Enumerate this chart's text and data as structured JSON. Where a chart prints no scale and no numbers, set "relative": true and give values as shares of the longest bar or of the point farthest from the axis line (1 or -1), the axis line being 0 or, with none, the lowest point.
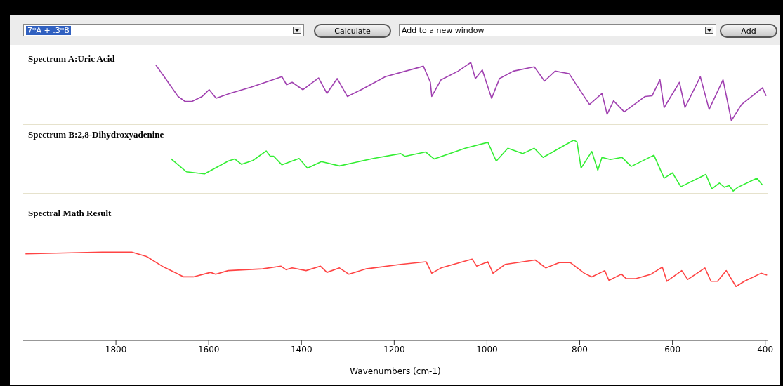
{
  "chart_data": [
    {
      "type": "line",
      "title": "Spectrum A:Uric Acid",
      "relative": true,
      "xlim": [
        2000,
        395
      ],
      "tick_labels": false,
      "grid": false,
      "annotations": [
        "7*A + .3*B",
        "Calculate",
        "Add to a new window",
        "Add"
      ],
      "series": [
        {
          "color": "#a040b0",
          "x": [
            1714,
            1696,
            1666,
            1651,
            1636,
            1614,
            1599,
            1584,
            1554,
            1509,
            1442,
            1432,
            1420,
            1397,
            1363,
            1345,
            1323,
            1301,
            1271,
            1219,
            1137,
            1122,
            1119,
            1099,
            1062,
            1035,
            1025,
            1010,
            990,
            973,
            943,
            898,
            876,
            853,
            823,
            779,
            752,
            741,
            727,
            704,
            659,
            644,
            627,
            618,
            585,
            573,
            540,
            521,
            491,
            473,
            451,
            406,
            398
          ],
          "values": [
            0.96,
            0.77,
            0.45,
            0.37,
            0.37,
            0.45,
            0.56,
            0.42,
            0.5,
            0.6,
            0.77,
            0.64,
            0.68,
            0.56,
            0.75,
            0.5,
            0.74,
            0.45,
            0.56,
            0.77,
            0.94,
            0.68,
            0.45,
            0.72,
            0.86,
            1,
            0.74,
            0.88,
            0.42,
            0.74,
            0.86,
            0.93,
            0.7,
            0.86,
            0.82,
            0.32,
            0.5,
            0.16,
            0.38,
            0.2,
            0.45,
            0.46,
            0.72,
            0.27,
            0.68,
            0.27,
            0.77,
            0.24,
            0.72,
            0.06,
            0.32,
            0.59,
            0.46
          ]
        }
      ]
    },
    {
      "type": "line",
      "title": "Spectrum B:2,8-Dihydroxyadenine",
      "relative": true,
      "xlim": [
        2000,
        395
      ],
      "tick_labels": false,
      "grid": false,
      "series": [
        {
          "color": "#33ee33",
          "x": [
            1681,
            1648,
            1609,
            1558,
            1544,
            1529,
            1505,
            1476,
            1467,
            1460,
            1442,
            1405,
            1387,
            1357,
            1318,
            1245,
            1186,
            1177,
            1132,
            1114,
            1047,
            998,
            980,
            955,
            923,
            898,
            879,
            813,
            806,
            797,
            774,
            761,
            752,
            734,
            709,
            689,
            640,
            618,
            600,
            582,
            528,
            515,
            499,
            488,
            478,
            469,
            459,
            418,
            406
          ],
          "values": [
            0.65,
            0.41,
            0.37,
            0.61,
            0.65,
            0.55,
            0.62,
            0.8,
            0.7,
            0.7,
            0.54,
            0.66,
            0.48,
            0.6,
            0.52,
            0.66,
            0.75,
            0.7,
            0.78,
            0.65,
            0.85,
            0.96,
            0.61,
            0.85,
            0.75,
            0.85,
            0.68,
            1,
            0.97,
            0.48,
            0.79,
            0.44,
            0.68,
            0.64,
            0.68,
            0.51,
            0.72,
            0.29,
            0.39,
            0.13,
            0.36,
            0.09,
            0.2,
            0.12,
            0.15,
            0.05,
            0.12,
            0.29,
            0.16
          ]
        }
      ]
    },
    {
      "type": "line",
      "title": "Spectral Math Result",
      "relative": true,
      "xlim": [
        2000,
        395
      ],
      "xticks": [
        1800,
        1600,
        1400,
        1200,
        1000,
        800,
        600,
        400
      ],
      "xlabel": "Wavenumbers (cm-1)",
      "tick_labels": "x",
      "grid": false,
      "series": [
        {
          "color": "#ff4444",
          "x": [
            1995,
            1830,
            1766,
            1734,
            1697,
            1654,
            1633,
            1596,
            1585,
            1558,
            1484,
            1444,
            1433,
            1420,
            1390,
            1359,
            1345,
            1318,
            1298,
            1260,
            1186,
            1131,
            1119,
            1099,
            1032,
            1022,
            998,
            987,
            961,
            896,
            873,
            844,
            820,
            790,
            774,
            746,
            737,
            710,
            700,
            679,
            646,
            622,
            612,
            580,
            567,
            530,
            517,
            503,
            484,
            463,
            445,
            409,
            396
          ],
          "values": [
            0.98,
            1,
            1,
            0.95,
            0.83,
            0.72,
            0.72,
            0.77,
            0.75,
            0.79,
            0.81,
            0.84,
            0.8,
            0.82,
            0.79,
            0.84,
            0.77,
            0.82,
            0.75,
            0.81,
            0.86,
            0.89,
            0.76,
            0.82,
            0.92,
            0.84,
            0.89,
            0.76,
            0.86,
            0.91,
            0.82,
            0.88,
            0.88,
            0.76,
            0.72,
            0.79,
            0.68,
            0.75,
            0.7,
            0.7,
            0.75,
            0.83,
            0.67,
            0.79,
            0.69,
            0.82,
            0.67,
            0.67,
            0.79,
            0.61,
            0.67,
            0.76,
            0.74
          ]
        }
      ]
    }
  ]
}
